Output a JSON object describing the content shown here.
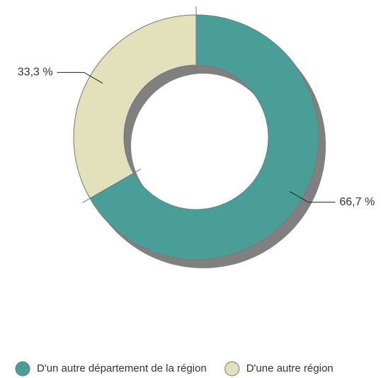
{
  "chart_data": {
    "type": "donut",
    "categories": [
      "D'un autre département de la région",
      "D'une autre région"
    ],
    "values": [
      66.7,
      33.3
    ],
    "value_labels": [
      "66,7 %",
      "33,3 %"
    ],
    "colors": [
      "#4a9e98",
      "#e3e1bc"
    ],
    "legend": "bottom"
  }
}
